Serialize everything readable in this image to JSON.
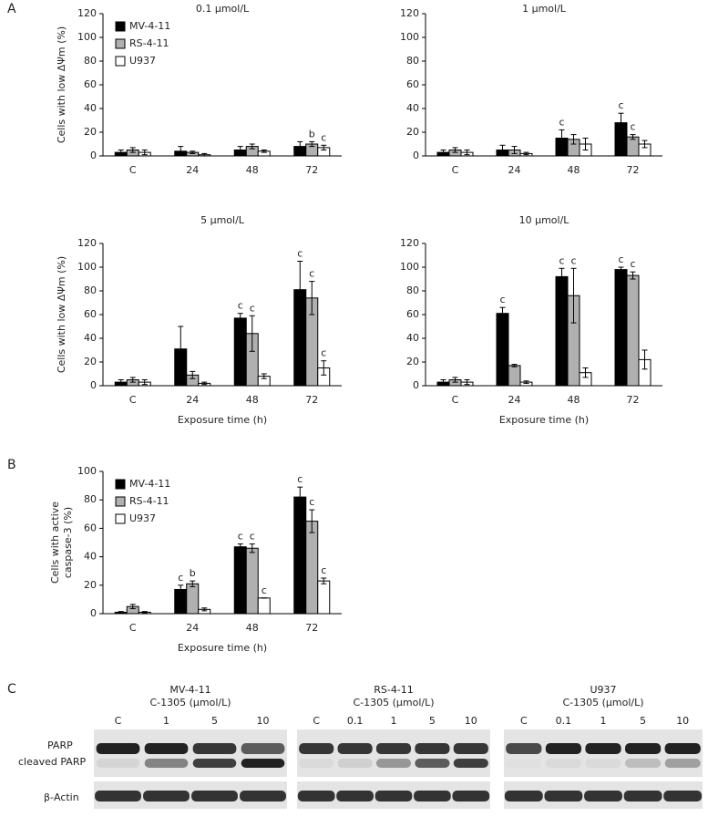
{
  "chart_data": [
    {
      "type": "bar",
      "title": "0.1 μmol/L",
      "y_label": "Cells with low ΔΨm (%)",
      "legend": "upper left",
      "categories": [
        "C",
        "24",
        "48",
        "72"
      ],
      "ylim": [
        0,
        120
      ],
      "yticks": [
        0,
        20,
        40,
        60,
        80,
        100,
        120
      ],
      "series": [
        {
          "name": "MV-4-11",
          "color": "#000000",
          "values": [
            3,
            4,
            5,
            8
          ],
          "errors": [
            2,
            4,
            3,
            4
          ],
          "annotations": [
            null,
            null,
            null,
            null
          ]
        },
        {
          "name": "RS-4-11",
          "color": "#b0b0b0",
          "values": [
            5,
            3,
            8,
            10
          ],
          "errors": [
            2,
            1,
            2,
            2
          ],
          "annotations": [
            null,
            null,
            null,
            "b"
          ]
        },
        {
          "name": "U937",
          "color": "#ffffff",
          "values": [
            3,
            1,
            4,
            7
          ],
          "errors": [
            2,
            1,
            1,
            2
          ],
          "annotations": [
            null,
            null,
            null,
            "c"
          ]
        }
      ]
    },
    {
      "type": "bar",
      "title": "1 μmol/L",
      "categories": [
        "C",
        "24",
        "48",
        "72"
      ],
      "ylim": [
        0,
        120
      ],
      "yticks": [
        0,
        20,
        40,
        60,
        80,
        100,
        120
      ],
      "series": [
        {
          "color": "#000000",
          "values": [
            3,
            5,
            15,
            28
          ],
          "errors": [
            2,
            4,
            7,
            8
          ],
          "annotations": [
            null,
            null,
            "c",
            "c"
          ]
        },
        {
          "color": "#b0b0b0",
          "values": [
            5,
            5,
            14,
            16
          ],
          "errors": [
            2,
            3,
            4,
            2
          ],
          "annotations": [
            null,
            null,
            null,
            "c"
          ]
        },
        {
          "color": "#ffffff",
          "values": [
            3,
            2,
            10,
            10
          ],
          "errors": [
            2,
            1,
            5,
            3
          ],
          "annotations": [
            null,
            null,
            null,
            null
          ]
        }
      ]
    },
    {
      "type": "bar",
      "title": "5 μmol/L",
      "y_label": "Cells with low ΔΨm (%)",
      "x_label": "Exposure time (h)",
      "categories": [
        "C",
        "24",
        "48",
        "72"
      ],
      "ylim": [
        0,
        120
      ],
      "yticks": [
        0,
        20,
        40,
        60,
        80,
        100,
        120
      ],
      "series": [
        {
          "color": "#000000",
          "values": [
            3,
            31,
            57,
            81
          ],
          "errors": [
            2,
            19,
            4,
            24
          ],
          "annotations": [
            null,
            null,
            "c",
            "c"
          ]
        },
        {
          "color": "#b0b0b0",
          "values": [
            5,
            9,
            44,
            74
          ],
          "errors": [
            2,
            3,
            15,
            14
          ],
          "annotations": [
            null,
            null,
            "c",
            "c"
          ]
        },
        {
          "color": "#ffffff",
          "values": [
            3,
            2,
            8,
            15
          ],
          "errors": [
            2,
            1,
            2,
            6
          ],
          "annotations": [
            null,
            null,
            null,
            "c"
          ]
        }
      ]
    },
    {
      "type": "bar",
      "title": "10 μmol/L",
      "x_label": "Exposure time (h)",
      "categories": [
        "C",
        "24",
        "48",
        "72"
      ],
      "ylim": [
        0,
        120
      ],
      "yticks": [
        0,
        20,
        40,
        60,
        80,
        100,
        120
      ],
      "series": [
        {
          "color": "#000000",
          "values": [
            3,
            61,
            92,
            98
          ],
          "errors": [
            2,
            5,
            7,
            2
          ],
          "annotations": [
            null,
            "c",
            "c",
            "c"
          ]
        },
        {
          "color": "#b0b0b0",
          "values": [
            5,
            17,
            76,
            93
          ],
          "errors": [
            2,
            1,
            23,
            3
          ],
          "annotations": [
            null,
            null,
            "c",
            "c"
          ]
        },
        {
          "color": "#ffffff",
          "values": [
            3,
            3,
            11,
            22
          ],
          "errors": [
            2,
            1,
            4,
            8
          ],
          "annotations": [
            null,
            null,
            null,
            null
          ]
        }
      ]
    },
    {
      "type": "bar",
      "y_label": [
        "Cells with active",
        "caspase-3 (%)"
      ],
      "x_label": "Exposure time (h)",
      "legend": "upper left",
      "categories": [
        "C",
        "24",
        "48",
        "72"
      ],
      "ylim": [
        0,
        100
      ],
      "yticks": [
        0,
        20,
        40,
        60,
        80,
        100
      ],
      "series": [
        {
          "name": "MV-4-11",
          "color": "#000000",
          "values": [
            1,
            17,
            47,
            82
          ],
          "errors": [
            0.5,
            3,
            2,
            7
          ],
          "annotations": [
            null,
            "c",
            "c",
            "c"
          ]
        },
        {
          "name": "RS-4-11",
          "color": "#b0b0b0",
          "values": [
            5,
            21,
            46,
            65
          ],
          "errors": [
            1.5,
            2,
            3,
            8
          ],
          "annotations": [
            null,
            "b",
            "c",
            "c"
          ]
        },
        {
          "name": "U937",
          "color": "#ffffff",
          "values": [
            1,
            3,
            11,
            23
          ],
          "errors": [
            0.5,
            1,
            0,
            2
          ],
          "annotations": [
            null,
            null,
            "c",
            "c"
          ]
        }
      ]
    }
  ],
  "panel_labels": [
    "A",
    "B",
    "C"
  ],
  "blot": {
    "row_labels": [
      "PARP",
      "cleaved PARP",
      "β-Actin"
    ],
    "groups": [
      {
        "cell_line": "MV-4-11",
        "treatment": "C-1305 (μmol/L)",
        "lanes": [
          "C",
          "1",
          "5",
          "10"
        ]
      },
      {
        "cell_line": "RS-4-11",
        "treatment": "C-1305 (μmol/L)",
        "lanes": [
          "C",
          "0.1",
          "1",
          "5",
          "10"
        ]
      },
      {
        "cell_line": "U937",
        "treatment": "C-1305 (μmol/L)",
        "lanes": [
          "C",
          "0.1",
          "1",
          "5",
          "10"
        ]
      }
    ]
  }
}
